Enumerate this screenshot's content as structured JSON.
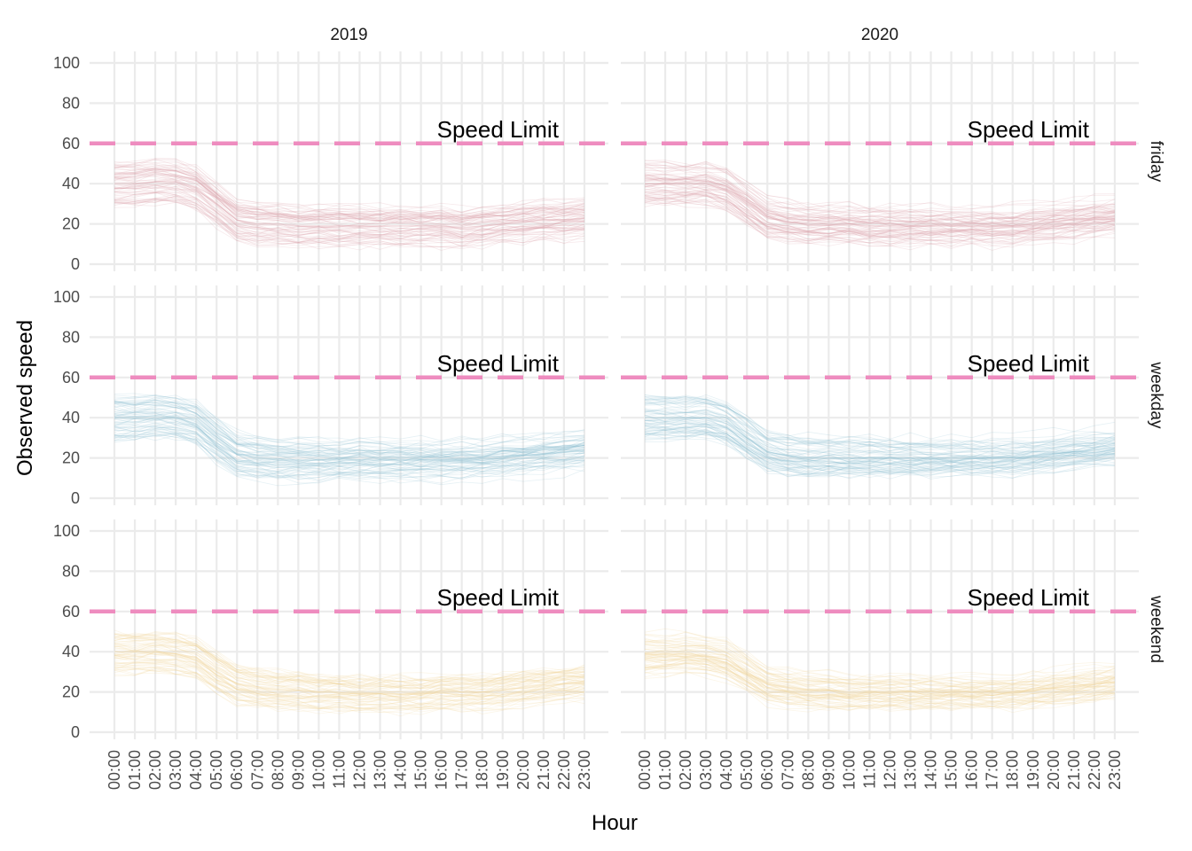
{
  "chart_data": {
    "type": "line",
    "xlabel": "Hour",
    "ylabel": "Observed speed",
    "ylim": [
      0,
      100
    ],
    "y_ticks": [
      "0",
      "20",
      "40",
      "60",
      "80",
      "100"
    ],
    "x_ticks": [
      "00:00",
      "01:00",
      "02:00",
      "03:00",
      "04:00",
      "05:00",
      "06:00",
      "07:00",
      "08:00",
      "09:00",
      "10:00",
      "11:00",
      "12:00",
      "13:00",
      "14:00",
      "15:00",
      "16:00",
      "17:00",
      "18:00",
      "19:00",
      "20:00",
      "21:00",
      "22:00",
      "23:00"
    ],
    "columns": [
      "2019",
      "2020"
    ],
    "rows": [
      "friday",
      "weekday",
      "weekend"
    ],
    "row_colors": {
      "friday": "#d9a0a8",
      "weekday": "#8fc1d0",
      "weekend": "#f0d49a"
    },
    "speed_limit": {
      "value": 60,
      "label": "Speed Limit",
      "color": "#ee8cbf"
    },
    "grid": true,
    "series_typical_profile": {
      "friday_2019": [
        40,
        40,
        41,
        41,
        38,
        30,
        22,
        20,
        20,
        19,
        19,
        19,
        19,
        19,
        19,
        19,
        19,
        18,
        19,
        20,
        21,
        22,
        22,
        23
      ],
      "friday_2020": [
        40,
        40,
        40,
        40,
        37,
        30,
        23,
        21,
        20,
        20,
        20,
        19,
        19,
        19,
        19,
        19,
        19,
        19,
        19,
        20,
        21,
        22,
        23,
        24
      ],
      "weekday_2019": [
        40,
        40,
        41,
        40,
        37,
        29,
        22,
        20,
        19,
        19,
        19,
        19,
        19,
        19,
        19,
        19,
        19,
        19,
        19,
        20,
        21,
        22,
        23,
        24
      ],
      "weekday_2020": [
        40,
        40,
        40,
        40,
        37,
        30,
        23,
        21,
        20,
        20,
        20,
        20,
        20,
        20,
        20,
        20,
        20,
        20,
        20,
        21,
        22,
        23,
        24,
        25
      ],
      "weekend_2019": [
        40,
        40,
        40,
        39,
        37,
        30,
        24,
        22,
        21,
        21,
        20,
        20,
        19,
        19,
        19,
        19,
        20,
        20,
        20,
        21,
        22,
        23,
        24,
        25
      ],
      "weekend_2020": [
        39,
        39,
        39,
        38,
        36,
        30,
        24,
        22,
        21,
        21,
        20,
        20,
        20,
        20,
        20,
        20,
        20,
        20,
        20,
        21,
        22,
        23,
        24,
        25
      ]
    }
  }
}
